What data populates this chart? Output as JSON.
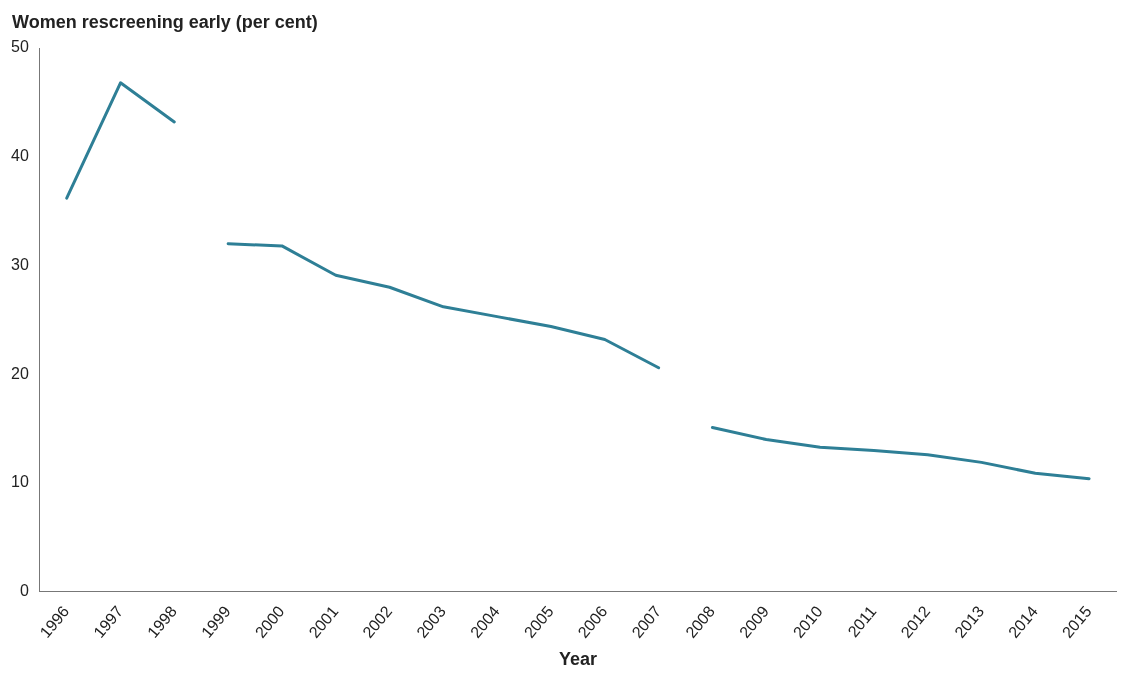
{
  "chart_data": {
    "type": "line",
    "ylabel": "Women rescreening early (per cent)",
    "xlabel": "Year",
    "categories": [
      "1996",
      "1997",
      "1998",
      "1999",
      "2000",
      "2001",
      "2002",
      "2003",
      "2004",
      "2005",
      "2006",
      "2007",
      "2008",
      "2009",
      "2010",
      "2011",
      "2012",
      "2013",
      "2014",
      "2015"
    ],
    "series": [
      {
        "color": "#2e7f96",
        "values": [
          36.2,
          46.8,
          43.2,
          null,
          null,
          null,
          null,
          null,
          null,
          null,
          null,
          null,
          null,
          null,
          null,
          null,
          null,
          null,
          null,
          null
        ]
      },
      {
        "color": "#2e7f96",
        "values": [
          null,
          null,
          null,
          32.0,
          31.8,
          29.1,
          28.0,
          26.2,
          25.3,
          24.4,
          23.2,
          20.6,
          null,
          null,
          null,
          null,
          null,
          null,
          null,
          null
        ]
      },
      {
        "color": "#2e7f96",
        "values": [
          null,
          null,
          null,
          null,
          null,
          null,
          null,
          null,
          null,
          null,
          null,
          null,
          15.1,
          14.0,
          13.3,
          13.0,
          12.6,
          11.9,
          10.9,
          10.4
        ]
      }
    ],
    "ylim": [
      0,
      50
    ],
    "yticks": [
      0,
      10,
      20,
      30,
      40,
      50
    ],
    "grid": false,
    "legend": false,
    "marker": "none",
    "line_style": "solid"
  }
}
